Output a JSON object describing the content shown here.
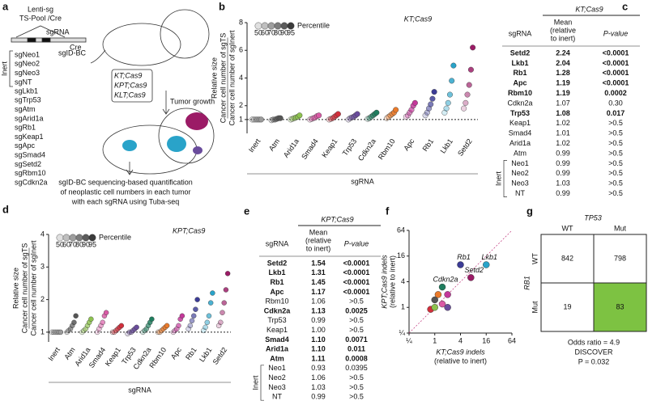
{
  "figure": {
    "a": {
      "panel_label": "a",
      "vector": [
        "Lenti-sg",
        "TS-Pool /Cre"
      ],
      "sgrna": "sgRNA",
      "cre": "Cre",
      "barcode": "sgID-BC",
      "inert_label": "Inert",
      "inert_guides": [
        "sgNeo1",
        "sgNeo2",
        "sgNeo3",
        "sgNT"
      ],
      "guides": [
        {
          "name": "sgLkb1",
          "color": "#29a3c9"
        },
        {
          "name": "sgTrp53",
          "color": "#6a4c9c"
        },
        {
          "name": "sgAtm",
          "color": "#555555"
        },
        {
          "name": "sgArid1a",
          "color": "#8dc24f"
        },
        {
          "name": "sgRb1",
          "color": "#3c3c96"
        },
        {
          "name": "sgKeap1",
          "color": "#d22f3b"
        },
        {
          "name": "sgApc",
          "color": "#c4379a"
        },
        {
          "name": "sgSmad4",
          "color": "#d95aa5"
        },
        {
          "name": "sgSetd2",
          "color": "#9b1b66"
        },
        {
          "name": "sgRbm10",
          "color": "#ea7a2a"
        },
        {
          "name": "sgCdkn2a",
          "color": "#1f7d5e"
        }
      ],
      "models": [
        "KT;Cas9",
        "KPT;Cas9",
        "KLT;Cas9"
      ],
      "tumor_growth": "Tumor growth",
      "caption": [
        "sgID-BC sequencing-based quantification",
        "of neoplastic cell numbers in each tumor",
        "with each sgRNA using Tuba-seq"
      ]
    },
    "c": {
      "panel_label": "c",
      "title": "KT;Cas9",
      "col_sgrna": "sgRNA",
      "col_mean": [
        "Mean",
        "(relative",
        "to inert)"
      ],
      "col_p": "P-value",
      "rows": [
        {
          "name": "Setd2",
          "mean": "2.24",
          "p": "<0.0001",
          "bold": true
        },
        {
          "name": "Lkb1",
          "mean": "2.04",
          "p": "<0.0001",
          "bold": true
        },
        {
          "name": "Rb1",
          "mean": "1.28",
          "p": "<0.0001",
          "bold": true
        },
        {
          "name": "Apc",
          "mean": "1.19",
          "p": "<0.0001",
          "bold": true
        },
        {
          "name": "Rbm10",
          "mean": "1.19",
          "p": "0.0002",
          "bold": true
        },
        {
          "name": "Cdkn2a",
          "mean": "1.07",
          "p": "0.30",
          "bold": false
        },
        {
          "name": "Trp53",
          "mean": "1.08",
          "p": "0.017",
          "bold": true
        },
        {
          "name": "Keap1",
          "mean": "1.02",
          "p": ">0.5",
          "bold": false
        },
        {
          "name": "Smad4",
          "mean": "1.01",
          "p": ">0.5",
          "bold": false
        },
        {
          "name": "Arid1a",
          "mean": "1.02",
          "p": ">0.5",
          "bold": false
        },
        {
          "name": "Atm",
          "mean": "0.99",
          "p": ">0.5",
          "bold": false
        }
      ],
      "inert_label": "Inert",
      "inert_rows": [
        {
          "name": "Neo1",
          "mean": "0.99",
          "p": ">0.5"
        },
        {
          "name": "Neo2",
          "mean": "0.99",
          "p": ">0.5"
        },
        {
          "name": "Neo3",
          "mean": "1.03",
          "p": ">0.5"
        },
        {
          "name": "NT",
          "mean": "0.99",
          "p": ">0.5"
        }
      ]
    },
    "e": {
      "panel_label": "e",
      "title": "KPT;Cas9",
      "col_sgrna": "sgRNA",
      "col_mean": [
        "Mean",
        "(relative",
        "to inert)"
      ],
      "col_p": "P-value",
      "rows": [
        {
          "name": "Setd2",
          "mean": "1.54",
          "p": "<0.0001",
          "bold": true
        },
        {
          "name": "Lkb1",
          "mean": "1.31",
          "p": "<0.0001",
          "bold": true
        },
        {
          "name": "Rb1",
          "mean": "1.45",
          "p": "<0.0001",
          "bold": true
        },
        {
          "name": "Apc",
          "mean": "1.17",
          "p": "<0.0001",
          "bold": true
        },
        {
          "name": "Rbm10",
          "mean": "1.06",
          "p": ">0.5",
          "bold": false
        },
        {
          "name": "Cdkn2a",
          "mean": "1.13",
          "p": "0.0025",
          "bold": true
        },
        {
          "name": "Trp53",
          "mean": "0.99",
          "p": ">0.5",
          "bold": false
        },
        {
          "name": "Keap1",
          "mean": "1.00",
          "p": ">0.5",
          "bold": false
        },
        {
          "name": "Smad4",
          "mean": "1.10",
          "p": "0.0071",
          "bold": true
        },
        {
          "name": "Arid1a",
          "mean": "1.10",
          "p": "0.011",
          "bold": true
        },
        {
          "name": "Atm",
          "mean": "1.11",
          "p": "0.0008",
          "bold": true
        }
      ],
      "inert_label": "Inert",
      "inert_rows": [
        {
          "name": "Neo1",
          "mean": "0.93",
          "p": "0.0395"
        },
        {
          "name": "Neo2",
          "mean": "1.06",
          "p": ">0.5"
        },
        {
          "name": "Neo3",
          "mean": "1.03",
          "p": ">0.5"
        },
        {
          "name": "NT",
          "mean": "0.99",
          "p": ">0.5"
        }
      ]
    },
    "g": {
      "panel_label": "g",
      "title": "TP53",
      "col_labels": [
        "WT",
        "Mut"
      ],
      "row_title": "RB1",
      "row_labels": [
        "WT",
        "Mut"
      ],
      "cells": [
        [
          {
            "text": "842"
          },
          {
            "text": "798"
          }
        ],
        [
          {
            "text": "19"
          },
          {
            "text": "83",
            "fill": "#7dc242"
          }
        ]
      ],
      "stats": [
        "Odds ratio = 4.9",
        "DISCOVER",
        "P = 0.032"
      ]
    }
  },
  "chart_data": [
    {
      "type": "dot",
      "panel_label": "b",
      "title": "KT;Cas9",
      "ylabel": [
        "Relative size",
        "Cancer cell number of sgTS",
        "Cancer cell number of sgInert"
      ],
      "xlabel": "sgRNA",
      "legend_title": "Percentile",
      "categories": [
        "Inert",
        "Atm",
        "Arid1a",
        "Smad4",
        "Keap1",
        "Trp53",
        "Cdkn2a",
        "Rbm10",
        "Apc",
        "Rb1",
        "Lkb1",
        "Setd2"
      ],
      "colors": [
        "#9a9a9a",
        "#555555",
        "#8dc24f",
        "#d95aa5",
        "#d22f3b",
        "#6a4c9c",
        "#1f7d5e",
        "#ea7a2a",
        "#c4379a",
        "#3c3c96",
        "#29a3c9",
        "#9b1b66"
      ],
      "series": [
        {
          "name": "50",
          "values": [
            1,
            0.95,
            1,
            1,
            1,
            1,
            1.05,
            1.1,
            1.2,
            1.3,
            1.5,
            1.8
          ]
        },
        {
          "name": "60",
          "values": [
            1,
            1,
            1.05,
            1.05,
            1.05,
            1.1,
            1.1,
            1.2,
            1.3,
            1.5,
            1.8,
            2.2
          ]
        },
        {
          "name": "70",
          "values": [
            1,
            1,
            1.1,
            1.1,
            1.1,
            1.15,
            1.2,
            1.3,
            1.5,
            1.8,
            2.2,
            2.8
          ]
        },
        {
          "name": "80",
          "values": [
            1,
            1.05,
            1.15,
            1.15,
            1.2,
            1.2,
            1.3,
            1.4,
            1.7,
            2.1,
            2.8,
            3.5
          ]
        },
        {
          "name": "90",
          "values": [
            1,
            1.1,
            1.2,
            1.25,
            1.3,
            1.3,
            1.4,
            1.5,
            2,
            2.5,
            3.8,
            4.6
          ]
        },
        {
          "name": "95",
          "values": [
            1,
            1.1,
            1.3,
            1.3,
            1.4,
            1.4,
            1.5,
            1.7,
            2.2,
            3,
            4.9,
            6.2
          ]
        }
      ],
      "ylim": [
        0,
        8
      ],
      "yticks": [
        1,
        2,
        4,
        6,
        8
      ],
      "refline": 1
    },
    {
      "type": "dot",
      "panel_label": "d",
      "title": "KPT;Cas9",
      "ylabel": [
        "Relative size",
        "Cancer cell number of sgTS",
        "Cancer cell number of sgInert"
      ],
      "xlabel": "sgRNA",
      "legend_title": "Percentile",
      "categories": [
        "Inert",
        "Atm",
        "Arid1a",
        "Smad4",
        "Keap1",
        "Trp53",
        "Cdkn2a",
        "Rbm10",
        "Apc",
        "Rb1",
        "Lkb1",
        "Setd2"
      ],
      "colors": [
        "#9a9a9a",
        "#555555",
        "#8dc24f",
        "#d95aa5",
        "#d22f3b",
        "#6a4c9c",
        "#1f7d5e",
        "#ea7a2a",
        "#c4379a",
        "#3c3c96",
        "#29a3c9",
        "#9b1b66"
      ],
      "series": [
        {
          "name": "50",
          "values": [
            1,
            1,
            1,
            1,
            1,
            0.95,
            1,
            1,
            1,
            1.1,
            1.05,
            1.2
          ]
        },
        {
          "name": "60",
          "values": [
            1,
            1.05,
            1.05,
            1.1,
            1,
            1,
            1.05,
            1,
            1.05,
            1.2,
            1.15,
            1.3
          ]
        },
        {
          "name": "70",
          "values": [
            1,
            1.1,
            1.1,
            1.2,
            1.05,
            1,
            1.1,
            1.05,
            1.1,
            1.35,
            1.3,
            1.6
          ]
        },
        {
          "name": "80",
          "values": [
            1,
            1.2,
            1.2,
            1.3,
            1.1,
            1.05,
            1.2,
            1.1,
            1.2,
            1.5,
            1.5,
            1.9
          ]
        },
        {
          "name": "90",
          "values": [
            1,
            1.3,
            1.3,
            1.5,
            1.15,
            1.1,
            1.3,
            1.15,
            1.4,
            1.7,
            1.9,
            2.3
          ]
        },
        {
          "name": "95",
          "values": [
            1,
            1.5,
            1.4,
            1.6,
            1.2,
            1.15,
            1.4,
            1.2,
            1.5,
            2,
            2.2,
            2.8
          ]
        }
      ],
      "ylim": [
        0.7,
        4
      ],
      "yticks": [
        1,
        2,
        3,
        4
      ],
      "refline": 1
    },
    {
      "type": "scatter",
      "panel_label": "f",
      "log_scale": true,
      "xlabel": [
        "KT;Cas9 indels",
        "(relative to inert)"
      ],
      "ylabel": [
        "KPT;Cas9 indels",
        "(relative to inert)"
      ],
      "points": [
        {
          "x": 16,
          "y": 10,
          "color": "#29a3c9",
          "label": "Lkb1"
        },
        {
          "x": 4,
          "y": 10,
          "color": "#3c3c96",
          "label": "Rb1"
        },
        {
          "x": 7,
          "y": 5,
          "color": "#9b1b66",
          "label": "Setd2"
        },
        {
          "x": 1.5,
          "y": 3,
          "color": "#1f7d5e",
          "label": "Cdkn2a"
        },
        {
          "x": 1,
          "y": 1.5,
          "color": "#555555"
        },
        {
          "x": 2,
          "y": 1,
          "color": "#6a4c9c"
        },
        {
          "x": 0.8,
          "y": 0.9,
          "color": "#d22f3b"
        },
        {
          "x": 2,
          "y": 2,
          "color": "#c4379a"
        },
        {
          "x": 1.5,
          "y": 1.2,
          "color": "#d95aa5"
        },
        {
          "x": 1.2,
          "y": 2,
          "color": "#ea7a2a"
        },
        {
          "x": 1,
          "y": 1,
          "color": "#8dc24f"
        }
      ],
      "xlim": [
        0.25,
        64
      ],
      "ylim": [
        0.25,
        64
      ],
      "xticks": [
        {
          "value": 0.25,
          "label": "¼"
        },
        1,
        4,
        16,
        64
      ],
      "yticks": [
        {
          "value": 0.25,
          "label": "¼"
        },
        1,
        4,
        16,
        64
      ]
    }
  ]
}
